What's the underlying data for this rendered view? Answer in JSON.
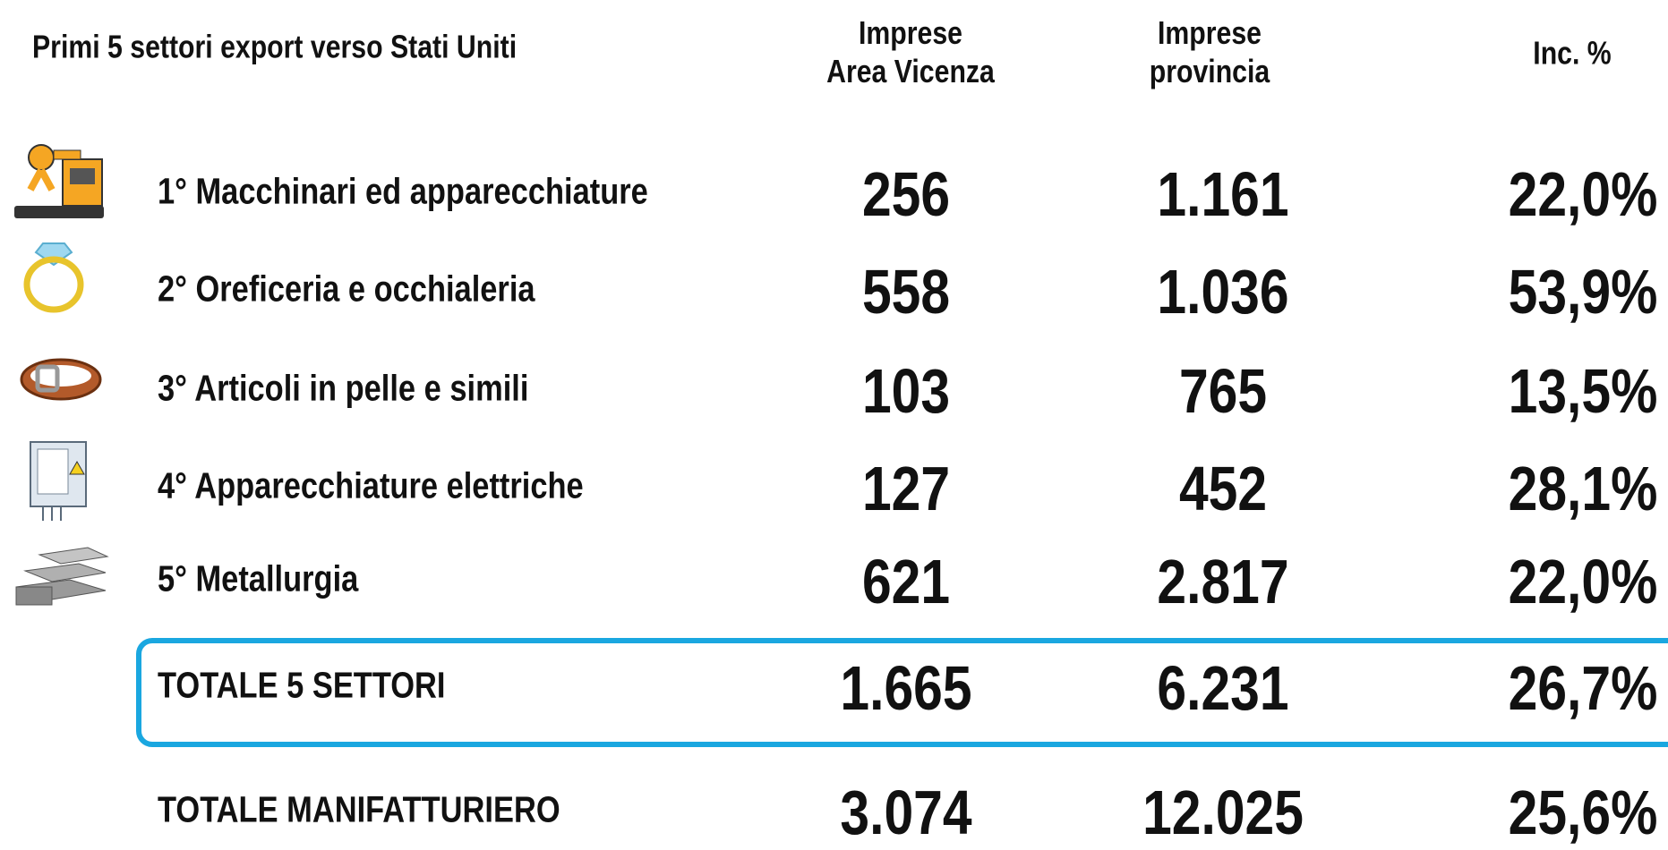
{
  "header": {
    "title": "Primi 5 settori export verso Stati Uniti",
    "columns": [
      "Imprese\nArea Vicenza",
      "Imprese\nprovincia",
      "Inc. %"
    ]
  },
  "rows": [
    [
      "1° Macchinari ed apparecchiature",
      "256",
      "1.161",
      "22,0%"
    ],
    [
      "2° Oreficeria e occhialeria",
      "558",
      "1.036",
      "53,9%"
    ],
    [
      "3° Articoli in pelle e simili",
      "103",
      "765",
      "13,5%"
    ],
    [
      "4° Apparecchiature elettriche",
      "127",
      "452",
      "28,1%"
    ],
    [
      "5° Metallurgia",
      "621",
      "2.817",
      "22,0%"
    ],
    [
      "TOTALE 5 SETTORI",
      "1.665",
      "6.231",
      "26,7%"
    ],
    [
      "TOTALE MANIFATTURIERO",
      "3.074",
      "12.025",
      "25,6%"
    ]
  ]
}
